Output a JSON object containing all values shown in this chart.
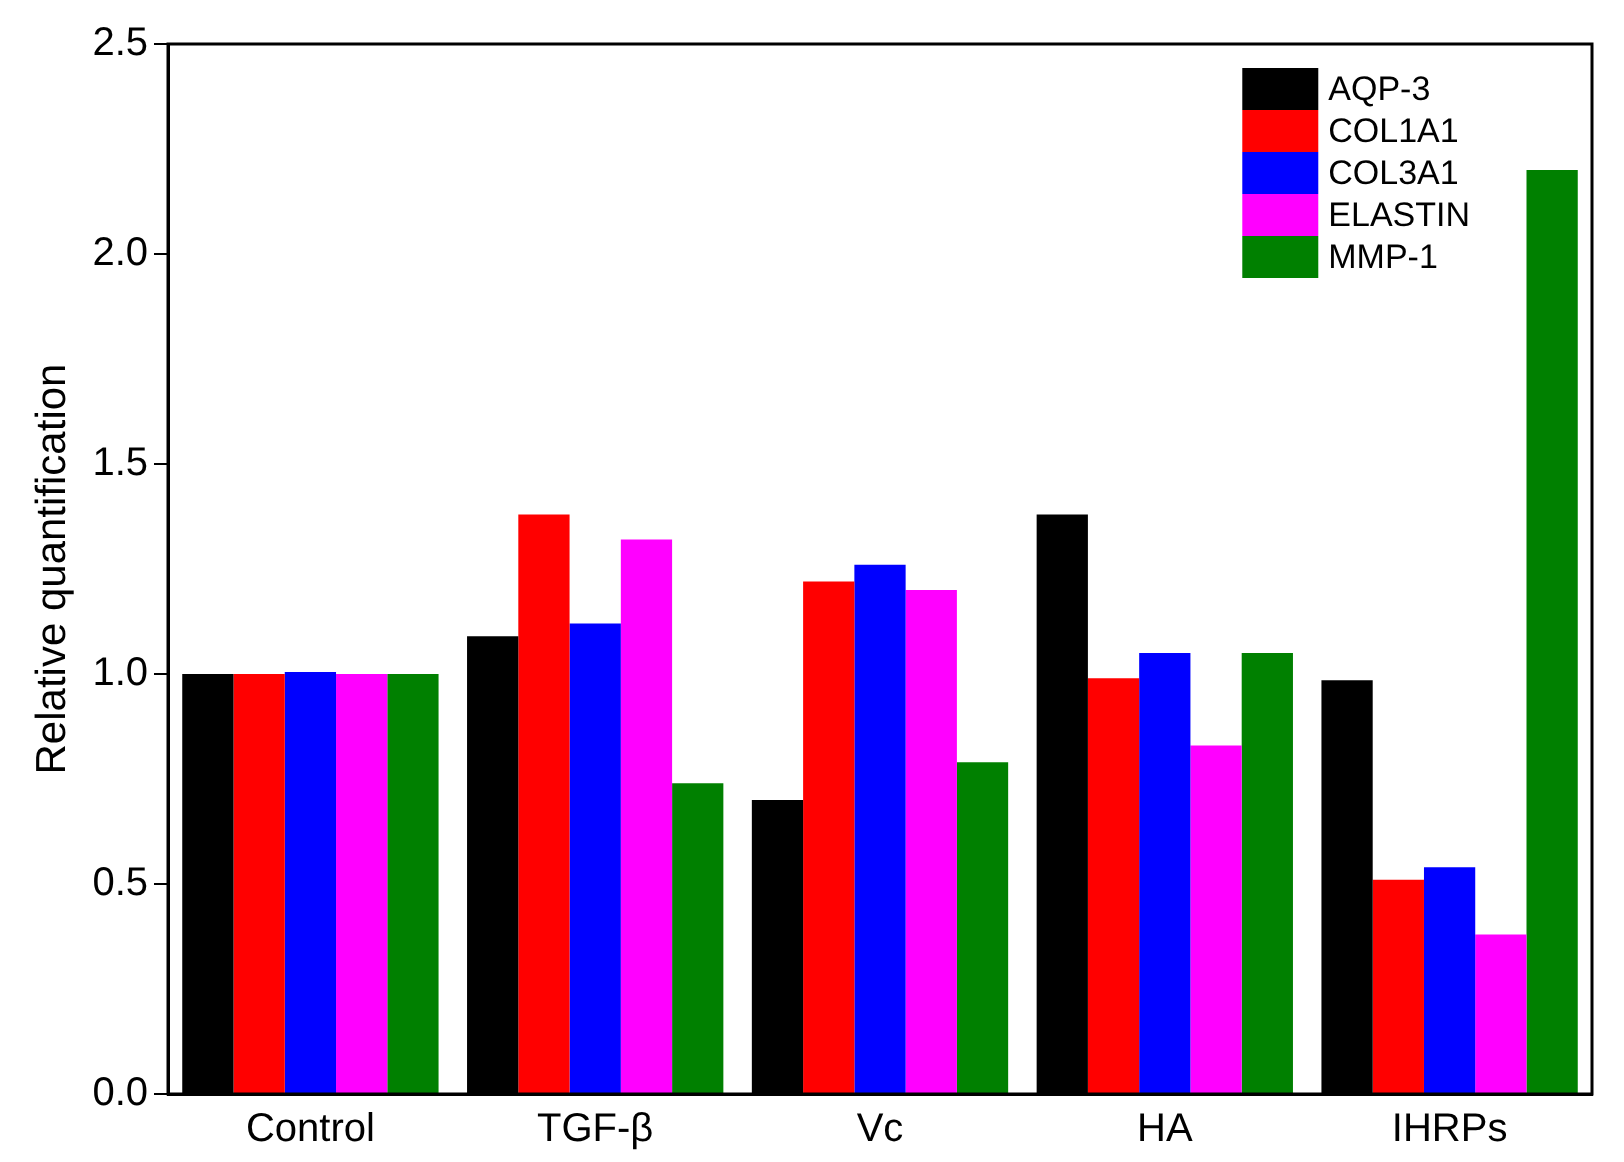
{
  "chart_data": {
    "type": "bar",
    "ylabel": "Relative quantification",
    "categories": [
      "Control",
      "TGF-β",
      "Vc",
      "HA",
      "IHRPs"
    ],
    "series": [
      {
        "name": "AQP-3",
        "color": "#000000",
        "values": [
          1.0,
          1.09,
          0.7,
          1.38,
          0.985
        ]
      },
      {
        "name": "COL1A1",
        "color": "#ff0000",
        "values": [
          1.0,
          1.38,
          1.22,
          0.99,
          0.51
        ]
      },
      {
        "name": "COL3A1",
        "color": "#0000ff",
        "values": [
          1.005,
          1.12,
          1.26,
          1.05,
          0.54
        ]
      },
      {
        "name": "ELASTIN",
        "color": "#ff00ff",
        "values": [
          1.0,
          1.32,
          1.2,
          0.83,
          0.38
        ]
      },
      {
        "name": "MMP-1",
        "color": "#008000",
        "values": [
          1.0,
          0.74,
          0.79,
          1.05,
          2.2
        ]
      }
    ],
    "ylim": [
      0,
      2.5
    ],
    "yticks": [
      {
        "value": 0,
        "label": "0.0"
      },
      0.5,
      {
        "value": 1,
        "label": "1.0"
      },
      1.5,
      {
        "value": 2,
        "label": "2.0"
      },
      2.5
    ],
    "grid": false,
    "legend": "top right"
  }
}
